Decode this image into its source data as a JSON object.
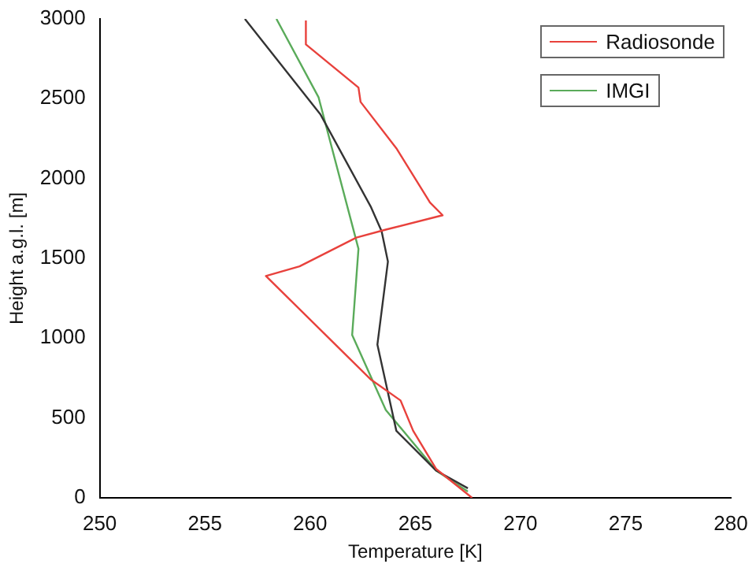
{
  "chart_data": {
    "type": "line",
    "xlabel": "Temperature [K]",
    "ylabel": "Height a.g.l. [m]",
    "xlim": [
      250,
      280
    ],
    "xticks": [
      250,
      255,
      260,
      265,
      270,
      275,
      280
    ],
    "ylim": [
      0,
      3000
    ],
    "yticks": [
      0,
      500,
      1000,
      1500,
      2000,
      2500,
      3000
    ],
    "grid": false,
    "legend": "top right",
    "marker": "none",
    "line_style": "solid",
    "series": [
      {
        "name": "Radiosonde",
        "color": "#e8413c",
        "x": [
          267.7,
          266.0,
          264.9,
          264.3,
          262.9,
          257.9,
          259.5,
          262.2,
          263.6,
          266.3,
          265.7,
          264.1,
          262.4,
          262.3,
          259.8,
          259.8
        ],
        "values": [
          0,
          180,
          420,
          610,
          740,
          1390,
          1450,
          1630,
          1680,
          1770,
          1850,
          2190,
          2480,
          2570,
          2840,
          2990
        ]
      },
      {
        "color": "#333333",
        "x": [
          267.5,
          266.0,
          264.1,
          263.2,
          263.7,
          263.4,
          262.9,
          260.5,
          256.9
        ],
        "values": [
          60,
          170,
          420,
          960,
          1480,
          1670,
          1820,
          2400,
          3000
        ]
      },
      {
        "name": "IMGI",
        "color": "#5aab5a",
        "x": [
          267.5,
          266.0,
          263.6,
          262.0,
          262.3,
          260.4,
          258.4
        ],
        "values": [
          40,
          170,
          550,
          1020,
          1560,
          2510,
          3000
        ]
      }
    ]
  }
}
